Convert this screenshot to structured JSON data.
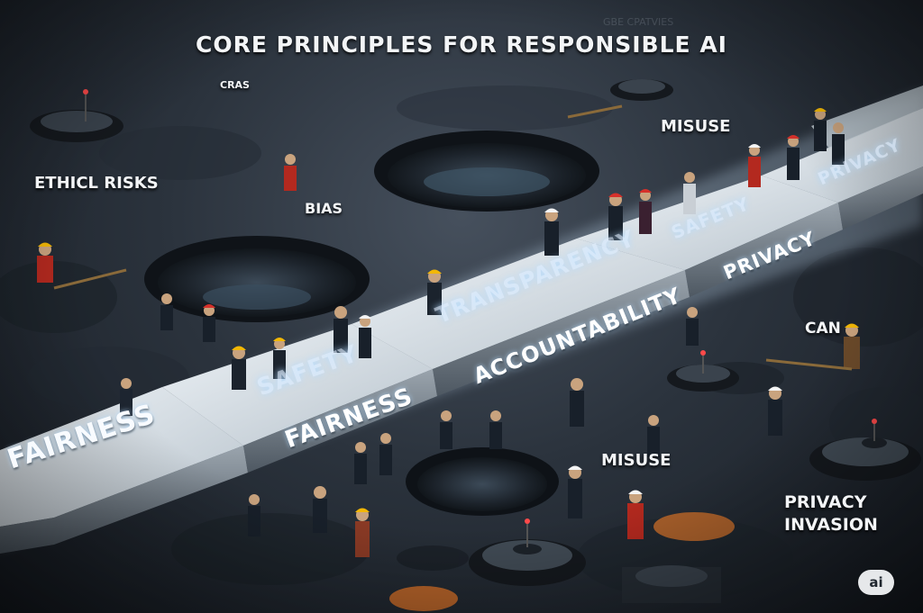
{
  "title": "CORE PRINCIPLES FOR RESPONSIBLE AI",
  "watermark": "GBE CPATVIES",
  "risk_labels": {
    "cras": "CRAS",
    "ethical_risks": "ETHICL RISKS",
    "bias": "BIAS",
    "misuse_top": "MISUSE",
    "can": "CAN",
    "misuse_bottom": "MISUSE",
    "privacy_invasion_line1": "PRIVACY",
    "privacy_invasion_line2": "INVASION"
  },
  "bridge_labels": {
    "fairness_front": "FAIRNESS",
    "safety_ghost": "SAFETY",
    "fairness_second": "FAIRNESS",
    "transparency": "TRANSPARENCY",
    "accountability": "ACCOUNTABILITY",
    "safety_far": "SAFETY",
    "privacy": "PRIVACY",
    "privacy_far": "PRIVACY"
  },
  "badge": "ai",
  "colors": {
    "ground": "#2b333d",
    "bridge_top": "#dfe6ec",
    "bridge_side": "#8a949e",
    "glow": "#cfe8ff",
    "helmet_yellow": "#f2b705",
    "helmet_red": "#d6312b",
    "helmet_white": "#f4f4f4",
    "shirt_red": "#b3291f"
  },
  "icons": {
    "badge": "ai-badge-icon",
    "worker": "construction-worker-icon",
    "crater": "crater-icon",
    "beacon": "beacon-pedestal-icon"
  }
}
